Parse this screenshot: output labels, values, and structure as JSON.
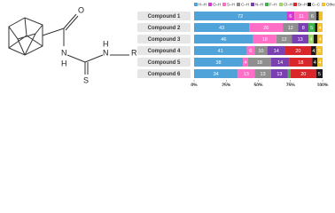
{
  "structure": {
    "atoms": [
      "O",
      "N",
      "H",
      "N",
      "H",
      "R",
      "S"
    ]
  },
  "chart_data": {
    "type": "stacked-barh",
    "categories": [
      "Compound 1",
      "Compound 2",
      "Compound 3",
      "Compound 4",
      "Compound 5",
      "Compound 6"
    ],
    "series": [
      {
        "name": "H–H",
        "color": "#4fa3d9",
        "values": [
          72,
          43,
          46,
          41,
          38,
          34
        ]
      },
      {
        "name": "O–H",
        "color": "#d63ad6",
        "values": [
          6,
          0,
          0,
          0,
          0,
          0
        ]
      },
      {
        "name": "S–H",
        "color": "#ff6fc8",
        "values": [
          11,
          26,
          18,
          6,
          4,
          13
        ]
      },
      {
        "name": "C–H",
        "color": "#8f8f8f",
        "values": [
          6,
          12,
          12,
          10,
          18,
          13
        ]
      },
      {
        "name": "N–H",
        "color": "#7a3fb0",
        "values": [
          0,
          8,
          13,
          14,
          14,
          13
        ]
      },
      {
        "name": "F–H",
        "color": "#3cb44b",
        "values": [
          0,
          5,
          0,
          0,
          0,
          2
        ]
      },
      {
        "name": "Cl–H",
        "color": "#9fd46a",
        "values": [
          0,
          0,
          4,
          0,
          0,
          0
        ]
      },
      {
        "name": "Br–H",
        "color": "#d9262b",
        "values": [
          0,
          0,
          0,
          20,
          18,
          20
        ]
      },
      {
        "name": "C–C",
        "color": "#1a1a1a",
        "values": [
          2,
          2,
          3,
          4,
          4,
          5
        ]
      },
      {
        "name": "Others",
        "color": "#f2c12e",
        "values": [
          3,
          4,
          4,
          5,
          4,
          0
        ]
      }
    ],
    "xlim": [
      0,
      100
    ],
    "xticks": [
      {
        "value": 0,
        "label": "0%"
      },
      {
        "value": 25,
        "label": "25%"
      },
      {
        "value": 50,
        "label": "50%"
      },
      {
        "value": 75,
        "label": "75%"
      },
      {
        "value": 100,
        "label": "100%"
      }
    ]
  }
}
